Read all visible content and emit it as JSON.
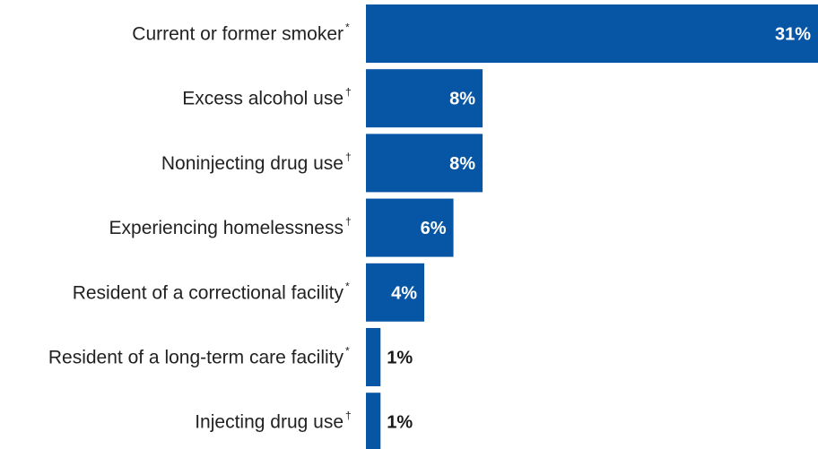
{
  "chart_data": {
    "type": "bar",
    "orientation": "horizontal",
    "categories": [
      "Current or former smoker",
      "Excess alcohol use",
      "Noninjecting drug use",
      "Experiencing homelessness",
      "Resident of a correctional facility",
      "Resident of a long-term care facility",
      "Injecting drug use"
    ],
    "footnote_marks": [
      "*",
      "†",
      "†",
      "†",
      "*",
      "*",
      "†"
    ],
    "values": [
      31,
      8,
      8,
      6,
      4,
      1,
      1
    ],
    "value_labels": [
      "31%",
      "8%",
      "8%",
      "6%",
      "4%",
      "1%",
      "1%"
    ],
    "unit": "%",
    "xlim": [
      0,
      31
    ],
    "grid": false,
    "legend": "none",
    "colors": {
      "bar": "#0756a6",
      "label_inside": "#ffffff",
      "label_outside": "#1a1a1a",
      "category_text": "#222222"
    }
  }
}
